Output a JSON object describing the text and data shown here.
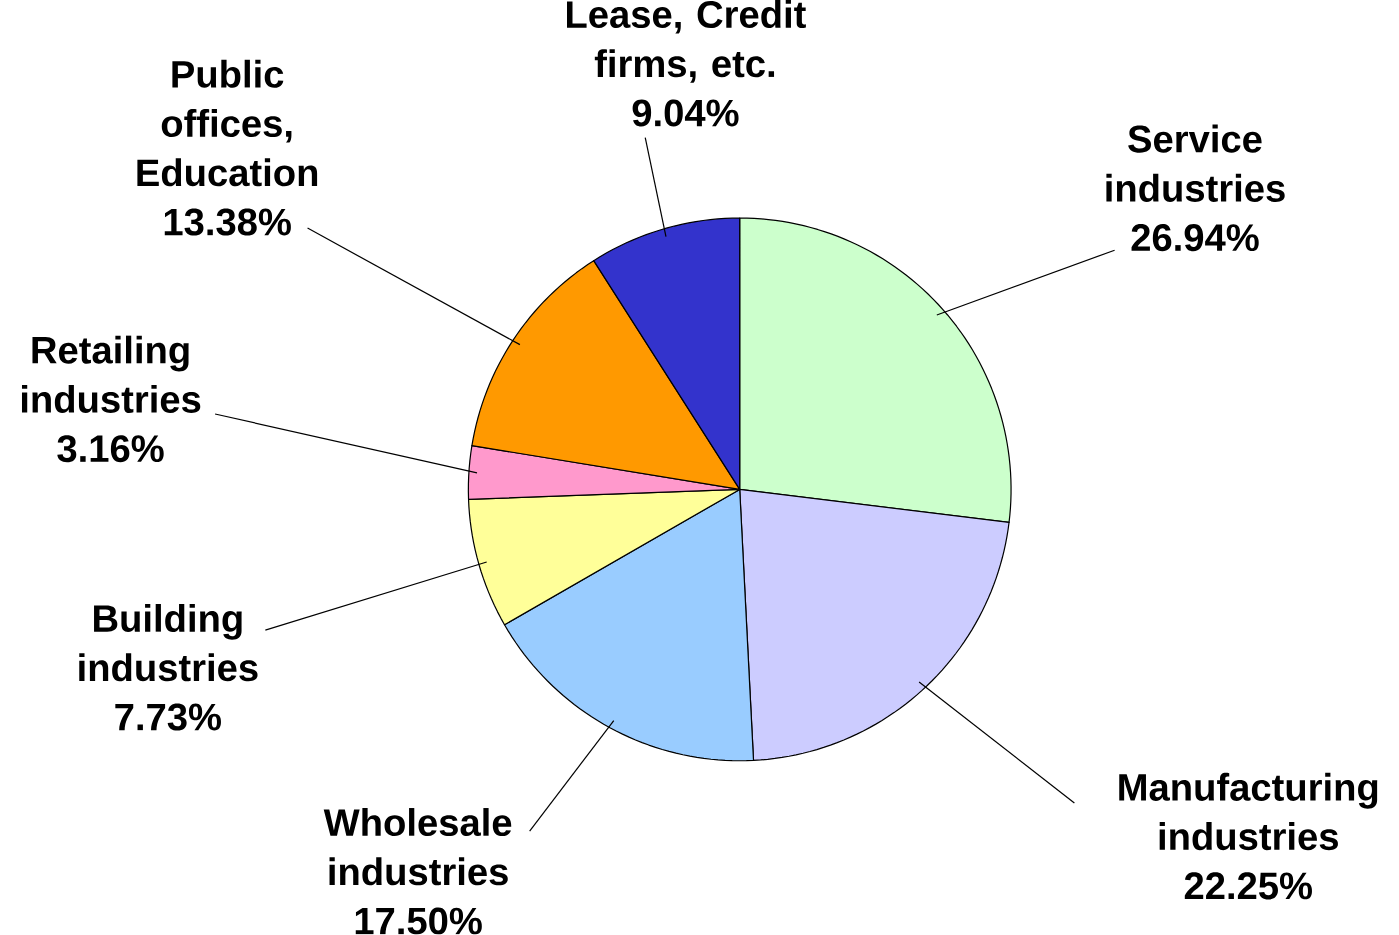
{
  "chart_data": {
    "type": "pie",
    "categories": [
      "Service industries",
      "Manufacturing industries",
      "Wholesale industries",
      "Building industries",
      "Retailing industries",
      "Public offices, Education",
      "Lease, Credit firms, etc."
    ],
    "values": [
      26.94,
      22.25,
      17.5,
      7.73,
      3.16,
      13.38,
      9.04
    ],
    "value_labels": [
      "26.94%",
      "22.25%",
      "17.50%",
      "7.73%",
      "3.16%",
      "13.38%",
      "9.04%"
    ],
    "colors": [
      "#ccffcc",
      "#ccccff",
      "#99ccff",
      "#ffff99",
      "#ff99cc",
      "#ff9900",
      "#3333cc"
    ]
  }
}
